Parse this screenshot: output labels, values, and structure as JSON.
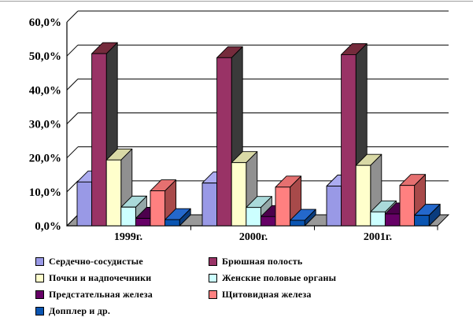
{
  "chart_data": {
    "type": "bar",
    "projection": "3d-column",
    "categories": [
      "1999г.",
      "2000г.",
      "2001г."
    ],
    "series": [
      {
        "name": "Сердечно-сосудистые",
        "values": [
          12.9,
          12.6,
          11.7
        ],
        "color": "#9999E6",
        "color_top": "#ACACF0",
        "color_side": "#6A6AA8"
      },
      {
        "name": "Брюшная полость",
        "values": [
          50.7,
          49.5,
          50.4
        ],
        "color": "#993366",
        "color_top": "#752B3C",
        "color_side": "#3A3A3A"
      },
      {
        "name": "Почки и надпочечники",
        "values": [
          19.4,
          18.6,
          17.8
        ],
        "color": "#FFFFCC",
        "color_top": "#D9D9A6",
        "color_side": "#909090"
      },
      {
        "name": "Женские половые органы",
        "values": [
          5.5,
          5.4,
          4.1
        ],
        "color": "#CCFFFF",
        "color_top": "#AADADA",
        "color_side": "#94A8A8"
      },
      {
        "name": "Предстательная железа",
        "values": [
          2.2,
          2.7,
          3.5
        ],
        "color": "#660066",
        "color_top": "#4D004D",
        "color_side": "#330033"
      },
      {
        "name": "Щитовидная железа",
        "values": [
          10.3,
          11.4,
          11.9
        ],
        "color": "#FF8080",
        "color_top": "#E57070",
        "color_side": "#A84A4A"
      },
      {
        "name": "Допплер и др.",
        "values": [
          1.8,
          1.6,
          3.1
        ],
        "color": "#0A55B2",
        "color_top": "#2468CC",
        "color_side": "#0A3C7E"
      }
    ],
    "y_axis": {
      "ticks": [
        "0,0%",
        "10,0%",
        "20,0%",
        "30,0%",
        "40,0%",
        "50,0%",
        "60,0%"
      ],
      "min": 0,
      "max": 60,
      "step": 10,
      "unit": "%"
    },
    "grid": true,
    "legend_position": "bottom-left",
    "colors": {
      "wall": "#FFFFFF",
      "floor": "#999999",
      "gridline": "#000000",
      "axis": "#000000",
      "text": "#000000"
    }
  }
}
